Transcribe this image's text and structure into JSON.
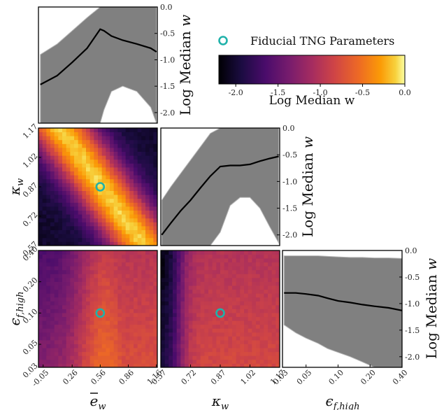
{
  "chart_data": {
    "type": "corner-heatmap",
    "title": "",
    "legend": {
      "label": "Fiducial TNG Parameters",
      "marker": "circle",
      "color": "#20b2aa"
    },
    "colorbar": {
      "label": "Log Median w",
      "range": [
        -2.2,
        0.0
      ],
      "ticks": [
        -2.0,
        -1.5,
        -1.0,
        -0.5,
        0.0
      ],
      "tick_labels": [
        "-2.0",
        "-1.5",
        "-1.0",
        "-0.5",
        "0.0"
      ]
    },
    "parameters": [
      {
        "key": "ebar_w",
        "label": "ē_w",
        "label_main": "e",
        "label_sub": "w",
        "label_bar": true,
        "range": [
          -0.1,
          1.17
        ],
        "ticks": [
          -0.05,
          0.26,
          0.56,
          0.86,
          1.16
        ],
        "tick_labels": [
          "-0.05",
          "0.26",
          "0.56",
          "0.86",
          "1.16"
        ],
        "fiducial": 0.56,
        "log_scale": false
      },
      {
        "key": "kappa_w",
        "label": "κ_w",
        "label_main": "κ",
        "label_sub": "w",
        "label_bar": false,
        "range": [
          0.57,
          1.17
        ],
        "ticks": [
          0.57,
          0.72,
          0.87,
          1.02,
          1.17
        ],
        "tick_labels": [
          "0.57",
          "0.72",
          "0.87",
          "1.02",
          "1.17"
        ],
        "fiducial": 0.87,
        "log_scale": false
      },
      {
        "key": "eps_f_high",
        "label": "ε_f,high",
        "label_main": "ϵ",
        "label_sub": "f,high",
        "label_bar": false,
        "range": [
          0.03,
          0.4
        ],
        "ticks": [
          0.03,
          0.05,
          0.1,
          0.2,
          0.4
        ],
        "tick_labels": [
          "0.03",
          "0.05",
          "0.10",
          "0.20",
          "0.40"
        ],
        "fiducial": 0.1,
        "log_scale": true
      }
    ],
    "diagonal_panels": [
      {
        "parameter": "ebar_w",
        "ylabel": "Log Median w",
        "ylim": [
          -2.2,
          0.0
        ],
        "yticks": [
          0.0,
          -0.5,
          -1.0,
          -1.5,
          -2.0
        ],
        "ytick_labels": [
          "0.0",
          "-0.5",
          "-1.0",
          "-1.5",
          "-2.0"
        ],
        "x": [
          -0.08,
          0.1,
          0.26,
          0.42,
          0.56,
          0.6,
          0.68,
          0.8,
          0.95,
          1.1,
          1.16
        ],
        "median": [
          -1.47,
          -1.3,
          -1.05,
          -0.78,
          -0.42,
          -0.45,
          -0.55,
          -0.63,
          -0.7,
          -0.78,
          -0.85
        ],
        "upper": [
          -0.9,
          -0.7,
          -0.45,
          -0.2,
          0.0,
          0.0,
          0.0,
          0.0,
          0.0,
          0.0,
          0.0
        ],
        "lower": [
          -2.2,
          -2.2,
          -2.2,
          -2.2,
          -2.2,
          -1.95,
          -1.6,
          -1.5,
          -1.6,
          -1.9,
          -2.2
        ]
      },
      {
        "parameter": "kappa_w",
        "ylabel": "Log Median w",
        "ylim": [
          -2.2,
          0.0
        ],
        "yticks": [
          0.0,
          -0.5,
          -1.0,
          -1.5,
          -2.0
        ],
        "ytick_labels": [
          "0.0",
          "-0.5",
          "-1.0",
          "-1.5",
          "-2.0"
        ],
        "x": [
          0.575,
          0.62,
          0.67,
          0.72,
          0.77,
          0.82,
          0.87,
          0.92,
          0.97,
          1.02,
          1.07,
          1.12,
          1.165
        ],
        "median": [
          -2.0,
          -1.78,
          -1.55,
          -1.35,
          -1.12,
          -0.9,
          -0.72,
          -0.7,
          -0.7,
          -0.68,
          -0.62,
          -0.57,
          -0.53
        ],
        "upper": [
          -1.35,
          -1.1,
          -0.85,
          -0.6,
          -0.35,
          -0.1,
          0.0,
          0.0,
          0.0,
          0.0,
          0.0,
          0.0,
          0.0
        ],
        "lower": [
          -2.2,
          -2.2,
          -2.2,
          -2.2,
          -2.2,
          -2.2,
          -1.95,
          -1.45,
          -1.3,
          -1.3,
          -1.5,
          -1.85,
          -2.15
        ]
      },
      {
        "parameter": "eps_f_high",
        "ylabel": "Log Median w",
        "ylim": [
          -2.2,
          0.0
        ],
        "yticks": [
          0.0,
          -0.5,
          -1.0,
          -1.5,
          -2.0
        ],
        "ytick_labels": [
          "0.0",
          "-0.5",
          "-1.0",
          "-1.5",
          "-2.0"
        ],
        "x": [
          0.031,
          0.04,
          0.05,
          0.065,
          0.08,
          0.1,
          0.13,
          0.17,
          0.22,
          0.3,
          0.4
        ],
        "median": [
          -0.8,
          -0.8,
          -0.82,
          -0.85,
          -0.9,
          -0.95,
          -0.98,
          -1.02,
          -1.05,
          -1.08,
          -1.13
        ],
        "upper": [
          -0.1,
          -0.1,
          -0.1,
          -0.1,
          -0.11,
          -0.12,
          -0.13,
          -0.13,
          -0.14,
          -0.14,
          -0.15
        ],
        "lower": [
          -1.4,
          -1.55,
          -1.65,
          -1.75,
          -1.85,
          -1.92,
          -2.0,
          -2.1,
          -2.2,
          -2.2,
          -2.2
        ]
      }
    ],
    "heatmaps": [
      {
        "x_param": "ebar_w",
        "y_param": "kappa_w",
        "grid": [
          30,
          30
        ],
        "model": "ridge",
        "description": "bright diagonal ridge: w peaks where ebar_w + 1.5*(kappa_w-0.87) ≈ 0.6; dark corners low-left and upper-right"
      },
      {
        "x_param": "ebar_w",
        "y_param": "eps_f_high",
        "grid": [
          30,
          30
        ],
        "model": "xband",
        "description": "vertical bright band near ebar_w ≈ 0.6, dark at low ebar_w and high eps_f_high"
      },
      {
        "x_param": "kappa_w",
        "y_param": "eps_f_high",
        "grid": [
          30,
          30
        ],
        "model": "kappa",
        "description": "dark at low kappa_w, orange plateau for kappa_w > 0.72"
      }
    ]
  }
}
